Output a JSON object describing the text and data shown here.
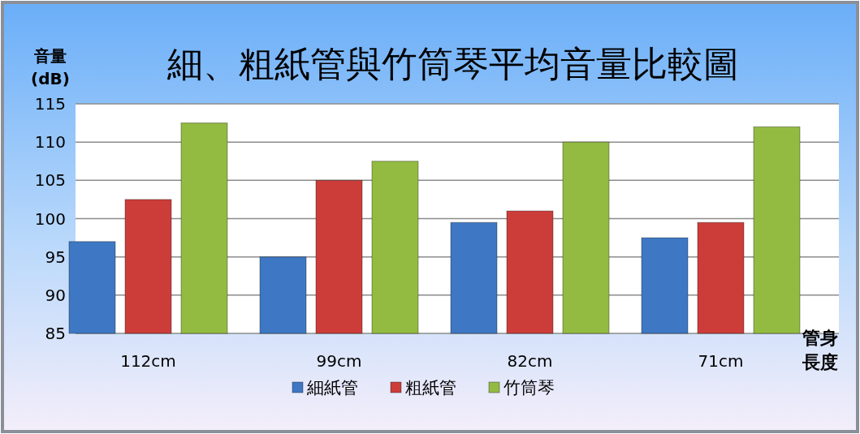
{
  "chart_data": {
    "type": "bar",
    "title": "細、粗紙管與竹筒琴平均音量比較圖",
    "ylabel": "音量\n(dB)",
    "xlabel": "管身長度",
    "categories": [
      "112cm",
      "99cm",
      "82cm",
      "71cm"
    ],
    "series": [
      {
        "name": "細紙管",
        "color": "#3e78c4",
        "values": [
          97,
          95,
          99.5,
          97.5
        ]
      },
      {
        "name": "粗紙管",
        "color": "#cc3d3a",
        "values": [
          102.5,
          105,
          101,
          99.5
        ]
      },
      {
        "name": "竹筒琴",
        "color": "#93bb42",
        "values": [
          112.5,
          107.5,
          110,
          112
        ]
      }
    ],
    "ylim": [
      85,
      115
    ],
    "yticks": [
      85,
      90,
      95,
      100,
      105,
      110,
      115
    ],
    "grid": "y",
    "legend": "bottom"
  }
}
